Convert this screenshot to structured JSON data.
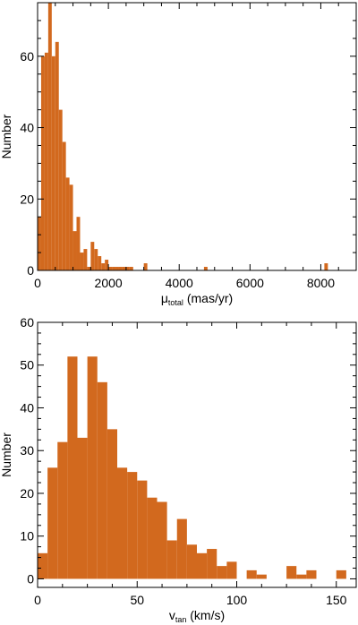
{
  "colors": {
    "bar": "#D2691E",
    "axis": "#000000",
    "background": "#ffffff"
  },
  "chart_data": [
    {
      "type": "bar",
      "id": "mu",
      "xlabel_main": "μ",
      "xlabel_sub": "total",
      "xlabel_rest": " (mas/yr)",
      "ylabel": "Number",
      "xlim": [
        0,
        9000
      ],
      "ylim": [
        0,
        75
      ],
      "xticks": [
        0,
        2000,
        4000,
        6000,
        8000
      ],
      "xtick_labels": [
        "0",
        "2000",
        "4000",
        "6000",
        "8000"
      ],
      "yticks": [
        0,
        20,
        40,
        60
      ],
      "ytick_labels": [
        "0",
        "20",
        "40",
        "60"
      ],
      "bin_width": 100,
      "bins": [
        {
          "x": 0,
          "value": 15
        },
        {
          "x": 100,
          "value": 60
        },
        {
          "x": 200,
          "value": 61
        },
        {
          "x": 300,
          "value": 75
        },
        {
          "x": 400,
          "value": 60
        },
        {
          "x": 500,
          "value": 64
        },
        {
          "x": 600,
          "value": 45
        },
        {
          "x": 700,
          "value": 36
        },
        {
          "x": 800,
          "value": 26
        },
        {
          "x": 900,
          "value": 24
        },
        {
          "x": 1000,
          "value": 11
        },
        {
          "x": 1100,
          "value": 15
        },
        {
          "x": 1200,
          "value": 5
        },
        {
          "x": 1300,
          "value": 6
        },
        {
          "x": 1400,
          "value": 1
        },
        {
          "x": 1500,
          "value": 8
        },
        {
          "x": 1600,
          "value": 6
        },
        {
          "x": 1700,
          "value": 4
        },
        {
          "x": 1800,
          "value": 2
        },
        {
          "x": 1900,
          "value": 3
        },
        {
          "x": 2000,
          "value": 1
        },
        {
          "x": 2100,
          "value": 1
        },
        {
          "x": 2200,
          "value": 1
        },
        {
          "x": 2300,
          "value": 1
        },
        {
          "x": 2400,
          "value": 1
        },
        {
          "x": 2500,
          "value": 1
        },
        {
          "x": 2600,
          "value": 1
        },
        {
          "x": 3000,
          "value": 2
        },
        {
          "x": 4700,
          "value": 1
        },
        {
          "x": 8100,
          "value": 2
        }
      ]
    },
    {
      "type": "bar",
      "id": "vtan",
      "xlabel_main": "v",
      "xlabel_sub": "tan",
      "xlabel_rest": " (km/s)",
      "ylabel": "Number",
      "xlim": [
        0,
        160
      ],
      "ylim": [
        -2,
        60
      ],
      "xticks": [
        0,
        50,
        100,
        150
      ],
      "xtick_labels": [
        "0",
        "50",
        "100",
        "150"
      ],
      "yticks": [
        0,
        10,
        20,
        30,
        40,
        50,
        60
      ],
      "ytick_labels": [
        "0",
        "10",
        "20",
        "30",
        "40",
        "50",
        "60"
      ],
      "bin_width": 5,
      "bins": [
        {
          "x": 0,
          "value": 6
        },
        {
          "x": 5,
          "value": 26
        },
        {
          "x": 10,
          "value": 32
        },
        {
          "x": 15,
          "value": 52
        },
        {
          "x": 20,
          "value": 33
        },
        {
          "x": 25,
          "value": 52
        },
        {
          "x": 30,
          "value": 46
        },
        {
          "x": 35,
          "value": 35
        },
        {
          "x": 40,
          "value": 26
        },
        {
          "x": 45,
          "value": 25
        },
        {
          "x": 50,
          "value": 23
        },
        {
          "x": 55,
          "value": 19
        },
        {
          "x": 60,
          "value": 18
        },
        {
          "x": 65,
          "value": 9
        },
        {
          "x": 70,
          "value": 14
        },
        {
          "x": 75,
          "value": 8
        },
        {
          "x": 80,
          "value": 6
        },
        {
          "x": 85,
          "value": 7
        },
        {
          "x": 90,
          "value": 3
        },
        {
          "x": 95,
          "value": 4
        },
        {
          "x": 100,
          "value": 0
        },
        {
          "x": 105,
          "value": 2
        },
        {
          "x": 110,
          "value": 1
        },
        {
          "x": 115,
          "value": 0
        },
        {
          "x": 120,
          "value": 0
        },
        {
          "x": 125,
          "value": 3
        },
        {
          "x": 130,
          "value": 1
        },
        {
          "x": 135,
          "value": 2
        },
        {
          "x": 140,
          "value": 0
        },
        {
          "x": 145,
          "value": 0
        },
        {
          "x": 150,
          "value": 2
        }
      ]
    }
  ]
}
